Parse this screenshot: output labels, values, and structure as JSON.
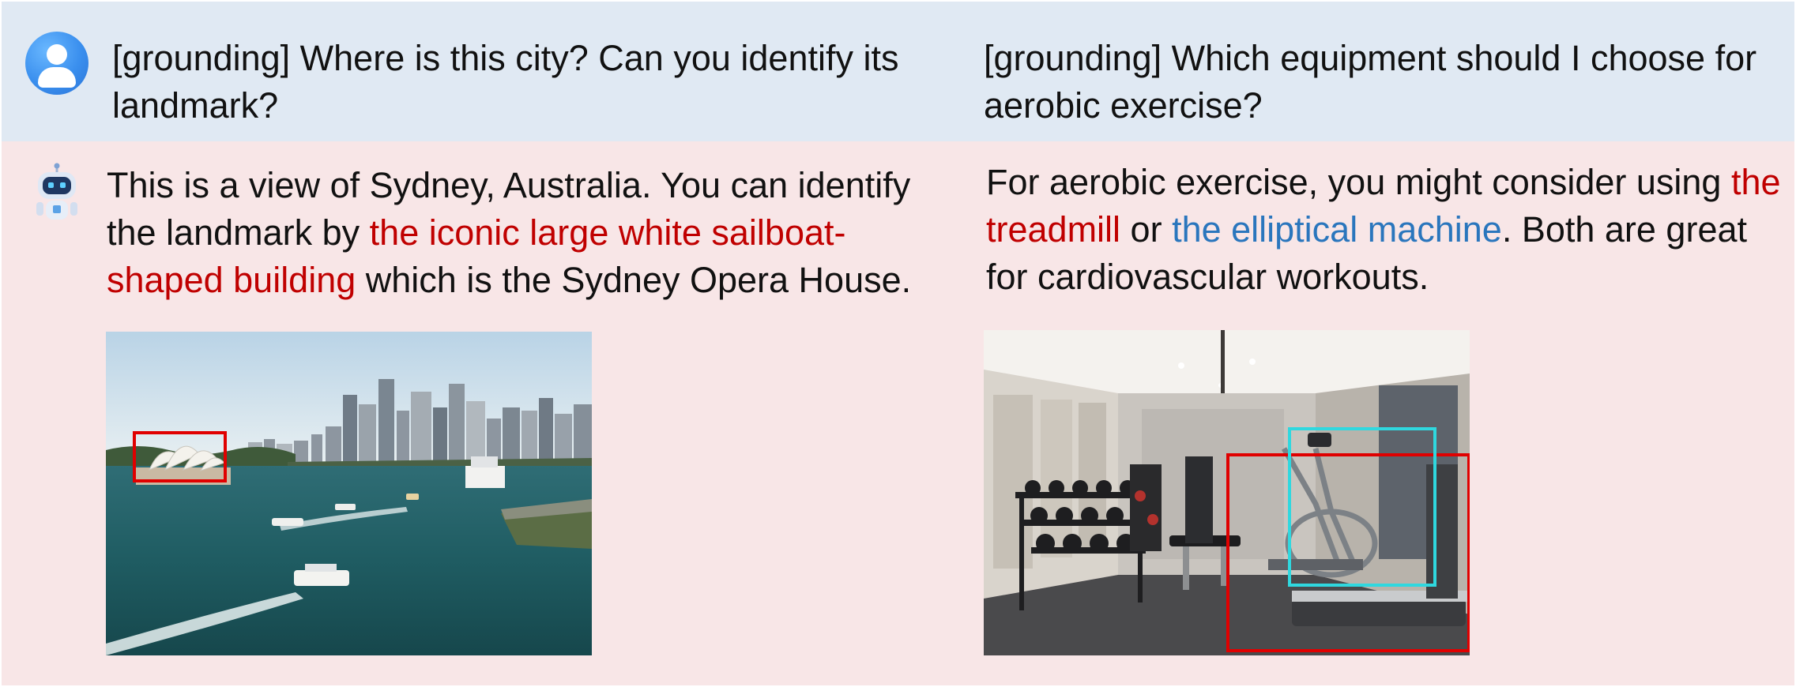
{
  "colors": {
    "user_band": "#e0e9f3",
    "bot_band": "#f8e6e7",
    "highlight_red": "#c00000",
    "highlight_blue": "#2a76bd",
    "bbox_red": "#e00000",
    "bbox_cyan": "#2fd8df"
  },
  "icons": {
    "user": "user-avatar-icon",
    "bot": "robot-avatar-icon"
  },
  "left": {
    "question": "[grounding] Where is this city? Can you identify its landmark?",
    "answer_plain_1": "This is a view of Sydney, Australia. You can identify the landmark by ",
    "answer_red": "the iconic large white sailboat-shaped building",
    "answer_plain_2": " which is the Sydney Opera House."
  },
  "right": {
    "question": "[grounding] Which equipment should I choose for aerobic exercise?",
    "answer_plain_1": "For aerobic exercise, you might consider using ",
    "answer_red": "the treadmill",
    "answer_plain_2": " or ",
    "answer_blue": "the elliptical machine",
    "answer_plain_3": ". Both are great for cardiovascular workouts."
  }
}
